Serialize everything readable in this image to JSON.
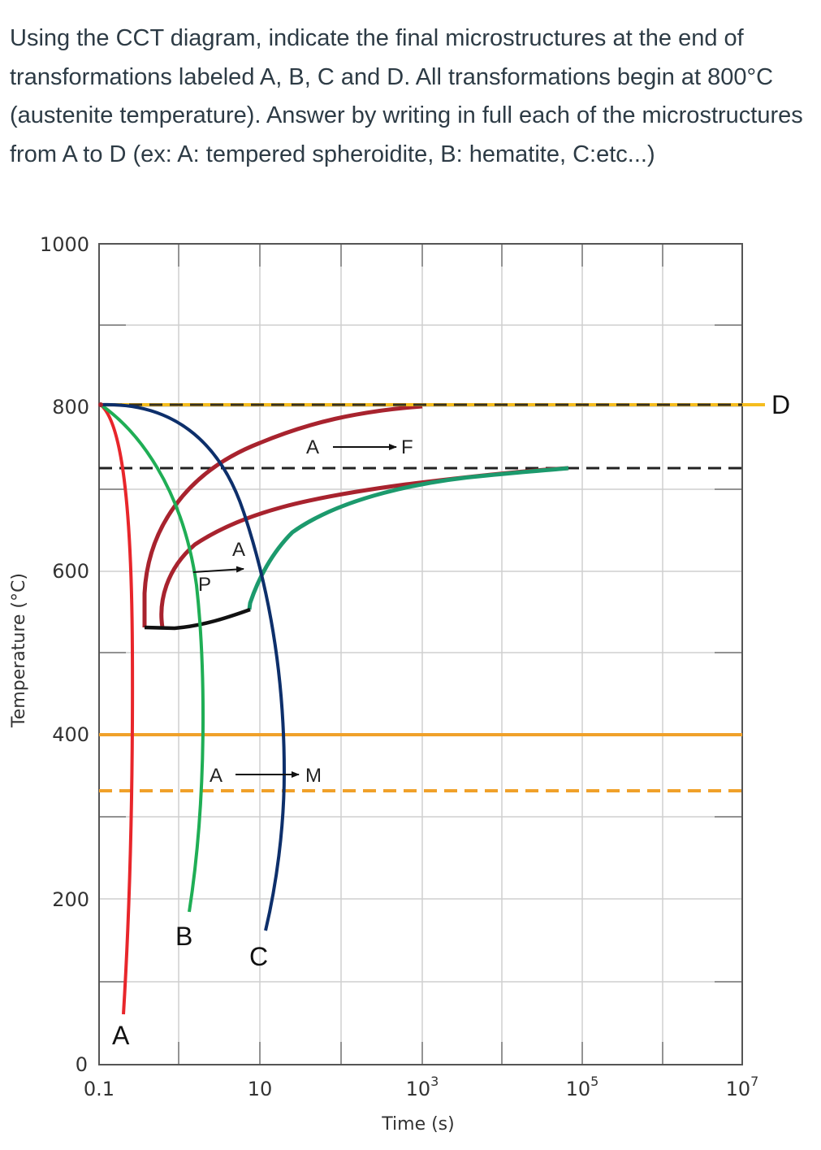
{
  "question": "Using the CCT diagram, indicate the final microstructures at the end of transformations labeled A, B, C and D. All transformations begin at 800°C (austenite temperature). Answer by writing in full each of the microstructures from A to D (ex: A: tempered spheroidite, B: hematite, C:etc...)",
  "diagram": {
    "ylabel": "Temperature (°C)",
    "xlabel": "Time (s)",
    "y_ticks": [
      "1000",
      "800",
      "600",
      "400",
      "200",
      "0"
    ],
    "x_ticks": [
      {
        "base": "0.1",
        "exp": ""
      },
      {
        "base": "10",
        "exp": ""
      },
      {
        "base": "10",
        "exp": "3"
      },
      {
        "base": "10",
        "exp": "5"
      },
      {
        "base": "10",
        "exp": "7"
      }
    ],
    "annotations": {
      "austenite_1": "A",
      "ferrite": "F",
      "pearlite": "P",
      "austenite_2": "A",
      "austenite_3": "A",
      "martensite": "M"
    },
    "cooling_curves": [
      {
        "label": "A",
        "color": "#e8262b"
      },
      {
        "label": "B",
        "color": "#1fae55"
      },
      {
        "label": "C",
        "color": "#0d2f6b"
      },
      {
        "label": "D",
        "color": "#f5bd1f"
      }
    ],
    "colors": {
      "transformation_curve": "#a8232e",
      "bainite_curve": "#1c9a6d",
      "ms_line": "#f0a12a",
      "grid": "#cfcfcf",
      "nose_line": "#111111"
    }
  }
}
